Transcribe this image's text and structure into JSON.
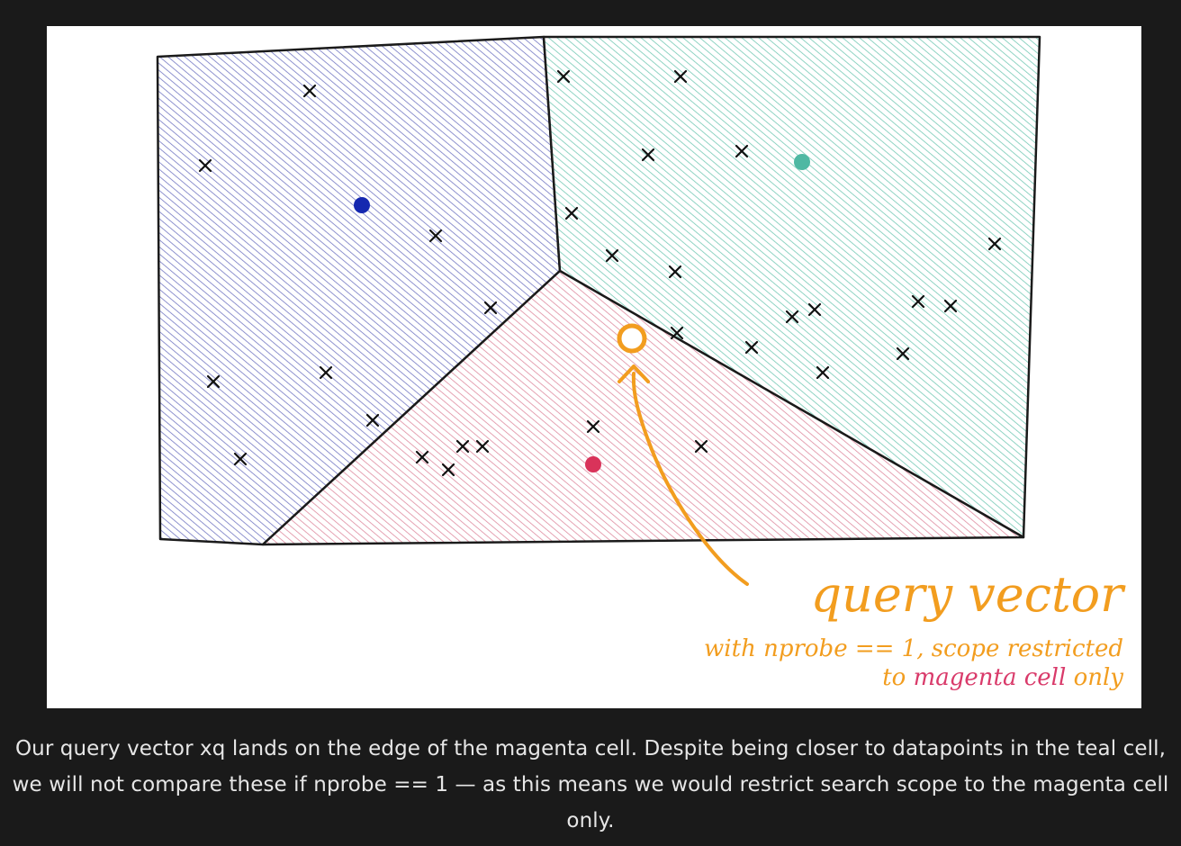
{
  "annotation": {
    "title": "query vector",
    "line1": "with nprobe == 1, scope restricted",
    "line2_prefix": "to ",
    "line2_highlight": "magenta cell",
    "line2_suffix": " only"
  },
  "colors": {
    "background": "#1a1a1a",
    "canvas": "#ffffff",
    "blue_cell": "#5a5fb8",
    "teal_cell": "#5cc0a8",
    "magenta_cell": "#d9768f",
    "blue_centroid": "#1528b0",
    "teal_centroid": "#4fb8a3",
    "magenta_centroid": "#d9335a",
    "query": "#f29d1f",
    "magenta_text": "#d93a6a",
    "caption_text": "#e6e6e6"
  },
  "caption": "Our query vector xq lands on the edge of the magenta cell. Despite being closer to datapoints in the teal cell, we will not compare these if nprobe == 1 — as this means we would restrict search scope to the magenta cell only."
}
